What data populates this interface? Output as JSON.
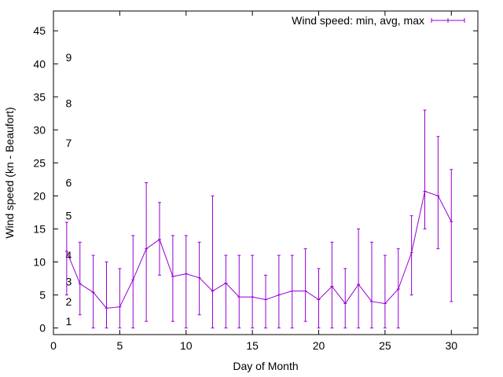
{
  "chart_data": {
    "type": "line",
    "title": "",
    "xlabel": "Day of Month",
    "ylabel": "Wind speed (kn - Beaufort)",
    "xlim": [
      0,
      32
    ],
    "ylim": [
      -1,
      48
    ],
    "x_ticks": [
      0,
      5,
      10,
      15,
      20,
      25,
      30
    ],
    "y_ticks": [
      0,
      5,
      10,
      15,
      20,
      25,
      30,
      35,
      40,
      45
    ],
    "grid": false,
    "legend_position": "top-right",
    "color": "#9400d3",
    "series": [
      {
        "name": "Wind speed: min, avg, max",
        "style": "line-with-errorbars",
        "x": [
          1,
          2,
          3,
          4,
          5,
          6,
          7,
          8,
          9,
          10,
          11,
          12,
          13,
          14,
          15,
          16,
          17,
          18,
          19,
          20,
          21,
          22,
          23,
          24,
          25,
          26,
          27,
          28,
          29,
          30
        ],
        "avg": [
          11.6,
          6.7,
          5.4,
          3.0,
          3.2,
          7.3,
          12.0,
          13.4,
          7.8,
          8.2,
          7.6,
          5.6,
          6.8,
          4.7,
          4.7,
          4.3,
          5.0,
          5.6,
          5.6,
          4.3,
          6.3,
          3.7,
          6.6,
          4.0,
          3.7,
          5.9,
          11.4,
          20.7,
          20.0,
          16.1
        ],
        "min": [
          5,
          2,
          0,
          0,
          0,
          0,
          1,
          8,
          1,
          0,
          2,
          0,
          0,
          0,
          0,
          0,
          0,
          0,
          1,
          0,
          0,
          0,
          0,
          0,
          0,
          0,
          5,
          15,
          12,
          4
        ],
        "max": [
          16,
          13,
          11,
          10,
          9,
          14,
          22,
          19,
          14,
          14,
          13,
          20,
          11,
          11,
          11,
          8,
          11,
          11,
          12,
          9,
          13,
          9,
          15,
          13,
          11,
          12,
          17,
          33,
          29,
          24
        ]
      }
    ],
    "annotations": [
      {
        "text": "1",
        "x": 0.5,
        "y": 1
      },
      {
        "text": "2",
        "x": 0.5,
        "y": 4
      },
      {
        "text": "3",
        "x": 0.5,
        "y": 7
      },
      {
        "text": "4",
        "x": 0.5,
        "y": 11
      },
      {
        "text": "5",
        "x": 0.5,
        "y": 17
      },
      {
        "text": "6",
        "x": 0.5,
        "y": 22
      },
      {
        "text": "7",
        "x": 0.5,
        "y": 28
      },
      {
        "text": "8",
        "x": 0.5,
        "y": 34
      },
      {
        "text": "9",
        "x": 0.5,
        "y": 41
      }
    ]
  }
}
